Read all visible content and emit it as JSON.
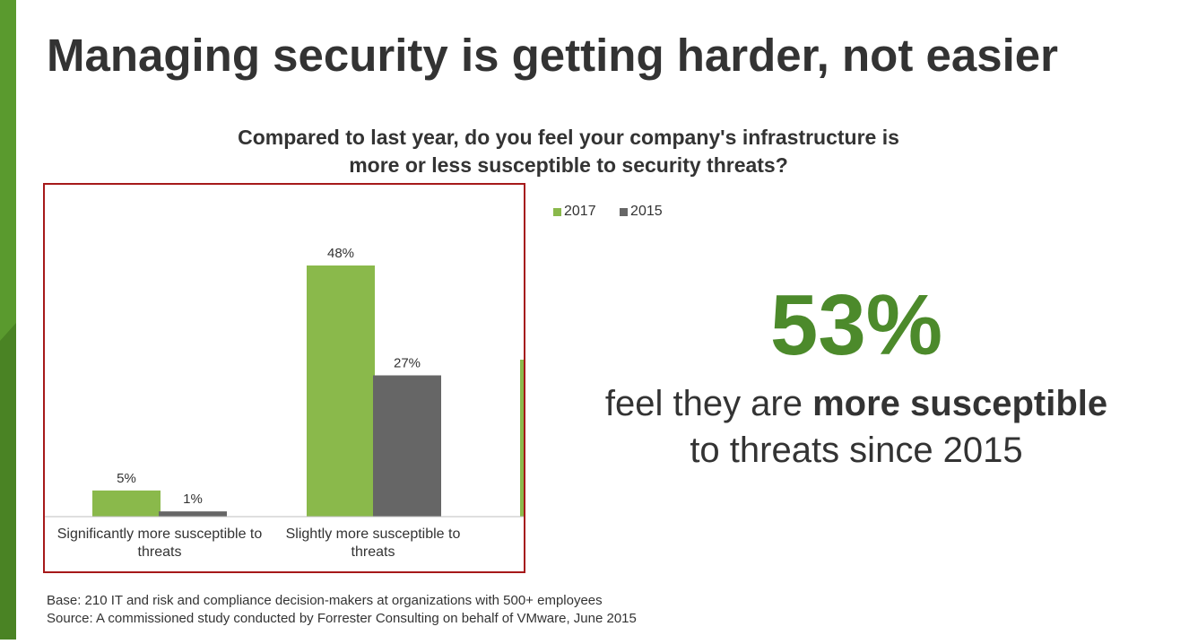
{
  "slide": {
    "title": "Managing security is getting harder, not easier",
    "question_line1": "Compared to last year, do you feel your company's infrastructure is",
    "question_line2": "more or less susceptible to security threats?",
    "stat_value": "53%",
    "stat_line1_pre": "feel they are ",
    "stat_line1_bold": "more susceptible",
    "stat_line2": "to threats since 2015",
    "footnote_base": "Base: 210 IT and risk and compliance decision-makers at organizations with 500+ employees",
    "footnote_source": "Source: A commissioned study conducted by Forrester Consulting on behalf of VMware, June 2015"
  },
  "colors": {
    "series_2017": "#8ab94b",
    "series_2015": "#666666",
    "stat_green": "#4c8a2b",
    "frame_red": "#a6191a",
    "sidebar_green": "#5a9a2e"
  },
  "chart_data": {
    "type": "bar",
    "title": "Compared to last year, do you feel your company's infrastructure is more or less susceptible to security threats?",
    "categories": [
      [
        "Significantly more susceptible to",
        "threats"
      ],
      [
        "Slightly more susceptible to",
        "threats"
      ],
      [
        "",
        ""
      ]
    ],
    "series": [
      {
        "name": "2017",
        "values": [
          5,
          48,
          30
        ],
        "labels": [
          "5%",
          "48%",
          ""
        ]
      },
      {
        "name": "2015",
        "values": [
          1,
          27,
          null
        ],
        "labels": [
          "1%",
          "27%",
          ""
        ]
      }
    ],
    "ylim": [
      0,
      50
    ],
    "legend": "top-left",
    "grid": false
  }
}
